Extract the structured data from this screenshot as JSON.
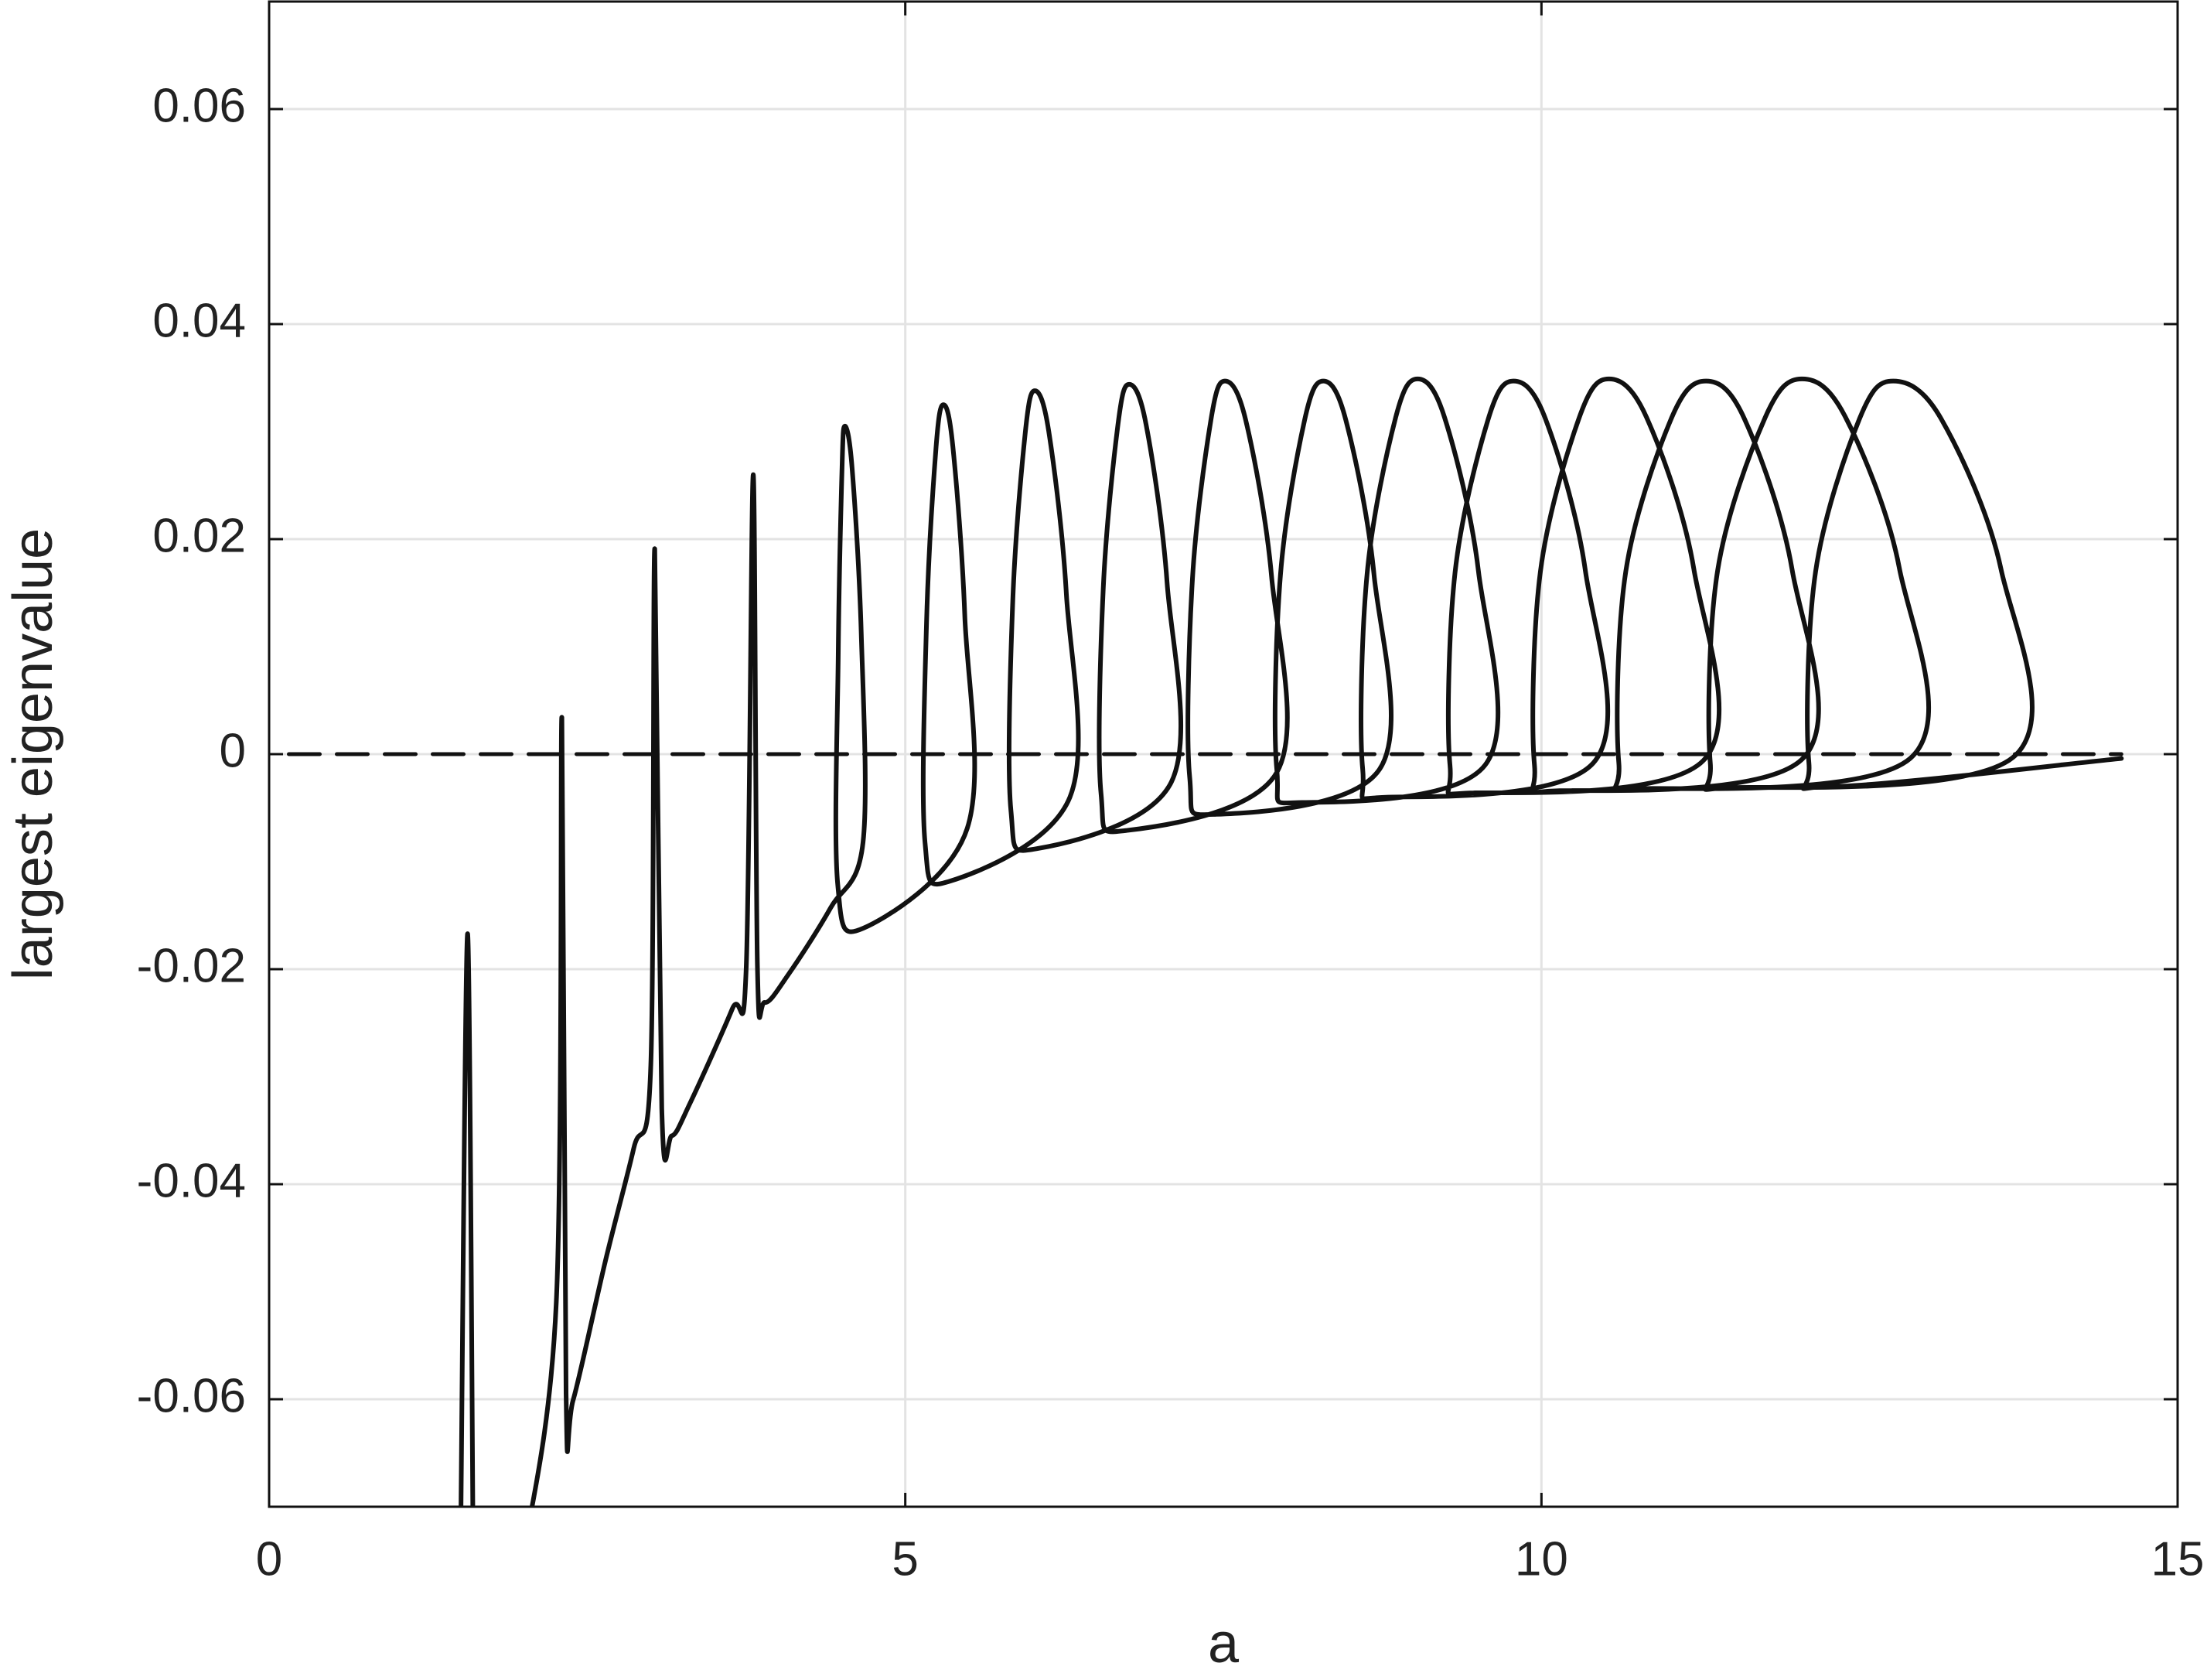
{
  "chart_data": {
    "type": "line",
    "xlabel": "a",
    "ylabel": "largest eigenvalue",
    "xlim": [
      0,
      15
    ],
    "ylim": [
      -0.07,
      0.07
    ],
    "xticks": [
      0,
      5,
      10,
      15
    ],
    "yticks": [
      -0.06,
      -0.04,
      -0.02,
      0,
      0.02,
      0.04,
      0.06
    ],
    "grid": true,
    "series": [
      {
        "color": "#111111",
        "x": [
          1.504,
          1.56,
          1.604,
          null,
          1.991,
          2.257,
          2.301,
          2.334,
          2.389,
          2.644,
          2.865,
          3.0,
          3.031,
          3.086,
          3.164,
          3.307,
          3.64,
          3.75,
          3.805,
          3.838,
          3.894,
          4.081,
          4.413,
          4.668,
          4.654,
          4.582,
          4.524,
          4.502,
          4.473,
          4.469,
          4.669,
          5.487,
          5.468,
          5.374,
          5.299,
          5.241,
          5.167,
          5.155,
          5.355,
          6.294,
          6.266,
          6.128,
          6.018,
          5.943,
          5.845,
          5.83,
          6.03,
          7.091,
          7.058,
          6.892,
          6.759,
          6.671,
          6.556,
          6.538,
          6.738,
          7.92,
          7.879,
          7.675,
          7.511,
          7.401,
          7.257,
          7.235,
          7.435,
          8.728,
          8.684,
          8.462,
          8.285,
          8.139,
          7.949,
          7.92,
          8.12,
          9.558,
          9.505,
          9.239,
          9.027,
          8.854,
          8.63,
          8.595,
          8.795,
          10.409,
          10.346,
          10.031,
          9.779,
          9.58,
          9.321,
          9.281,
          9.481,
          11.272,
          11.198,
          10.827,
          10.531,
          10.297,
          9.992,
          9.945,
          10.145,
          12.046,
          11.971,
          11.595,
          11.294,
          11.02,
          10.663,
          10.608,
          10.808,
          12.898,
          12.813,
          12.387,
          12.046,
          11.758,
          11.385,
          11.327,
          11.527,
          13.706,
          13.612,
          13.141,
          12.765,
          12.5,
          12.155,
          12.102,
          12.302,
          14.558
        ],
        "values": [
          -0.075,
          -0.0167,
          -0.075,
          null,
          -0.075,
          -0.051,
          0.0034,
          -0.0595,
          -0.0601,
          -0.0471,
          -0.0367,
          -0.0289,
          0.0191,
          -0.0329,
          -0.0355,
          -0.0325,
          -0.0237,
          -0.0198,
          0.026,
          -0.0198,
          -0.0231,
          -0.0205,
          -0.0143,
          -0.0082,
          0.0112,
          0.0266,
          0.0305,
          0.0262,
          0.0092,
          -0.0121,
          -0.0162,
          -0.0069,
          0.0128,
          0.0286,
          0.0325,
          0.0284,
          0.0122,
          -0.0082,
          -0.0118,
          -0.004,
          0.0149,
          0.03,
          0.0338,
          0.0299,
          0.0143,
          -0.0052,
          -0.0088,
          -0.0026,
          0.0159,
          0.0307,
          0.0344,
          0.0306,
          0.0154,
          -0.0036,
          -0.0071,
          -0.0017,
          0.0165,
          0.0311,
          0.0347,
          0.031,
          0.0163,
          -0.0021,
          -0.0056,
          -0.0014,
          0.0167,
          0.0311,
          0.0347,
          0.0311,
          0.0167,
          -0.0014,
          -0.0045,
          -0.001,
          0.017,
          0.0313,
          0.0349,
          0.0313,
          0.0168,
          -0.0014,
          -0.004,
          -0.0008,
          0.017,
          0.0312,
          0.0347,
          0.0311,
          0.0169,
          -0.001,
          -0.0036,
          -0.0006,
          0.0172,
          0.0313,
          0.0349,
          0.0313,
          0.017,
          -0.001,
          -0.0034,
          -0.0005,
          0.0171,
          0.0312,
          0.0347,
          0.0312,
          0.017,
          -0.0008,
          -0.0032,
          -0.0004,
          0.0173,
          0.0314,
          0.0349,
          0.0313,
          0.0171,
          -0.0008,
          -0.0031,
          -0.0003,
          0.0172,
          0.0312,
          0.0347,
          0.0312,
          0.017,
          -0.0008,
          -0.003,
          -0.0004
        ]
      },
      {
        "color": "#111111",
        "dash": true,
        "x": [
          0.155,
          14.558
        ],
        "values": [
          0,
          0
        ]
      }
    ]
  }
}
